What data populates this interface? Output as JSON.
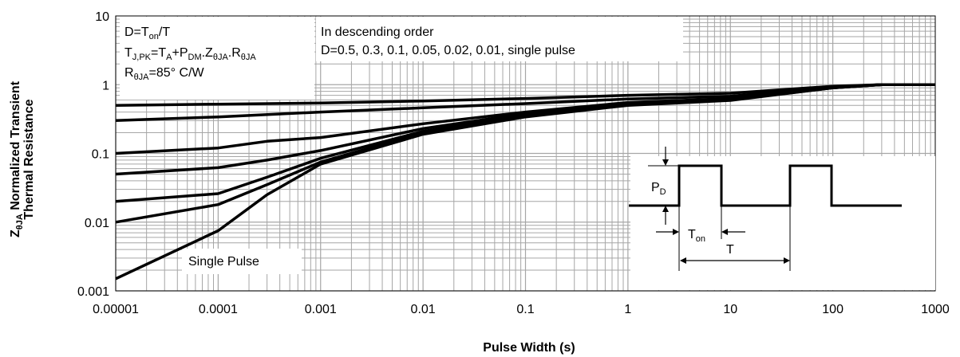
{
  "chart_data": {
    "type": "line",
    "title": "",
    "xlabel": "Pulse Width (s)",
    "ylabel_line1": "Normalized Transient",
    "ylabel_line2": "Thermal Resistance",
    "ylabel_symbol": "Z",
    "ylabel_symbol_sub": "θJA",
    "x_scale": "log",
    "y_scale": "log",
    "xlim": [
      1e-05,
      1000
    ],
    "ylim": [
      0.001,
      10
    ],
    "x_tick_labels": [
      "0.00001",
      "0.0001",
      "0.001",
      "0.01",
      "0.1",
      "1",
      "10",
      "100",
      "1000"
    ],
    "y_tick_labels": [
      "0.001",
      "0.01",
      "0.1",
      "1",
      "10"
    ],
    "grid": true,
    "series": [
      {
        "values": [
          [
            1e-05,
            0.5
          ],
          [
            0.0001,
            0.52
          ],
          [
            0.001,
            0.54
          ],
          [
            0.01,
            0.58
          ],
          [
            0.1,
            0.63
          ],
          [
            1,
            0.7
          ],
          [
            10,
            0.75
          ],
          [
            100,
            0.95
          ],
          [
            300,
            1.0
          ],
          [
            1000,
            1.0
          ]
        ]
      },
      {
        "values": [
          [
            1e-05,
            0.3
          ],
          [
            0.0001,
            0.34
          ],
          [
            0.001,
            0.4
          ],
          [
            0.01,
            0.46
          ],
          [
            0.1,
            0.53
          ],
          [
            1,
            0.62
          ],
          [
            10,
            0.68
          ],
          [
            100,
            0.93
          ],
          [
            300,
            1.0
          ],
          [
            1000,
            1.0
          ]
        ]
      },
      {
        "values": [
          [
            1e-05,
            0.1
          ],
          [
            0.0001,
            0.12
          ],
          [
            0.0003,
            0.15
          ],
          [
            0.001,
            0.17
          ],
          [
            0.01,
            0.27
          ],
          [
            0.1,
            0.4
          ],
          [
            1,
            0.55
          ],
          [
            10,
            0.63
          ],
          [
            100,
            0.92
          ],
          [
            300,
            1.0
          ],
          [
            1000,
            1.0
          ]
        ]
      },
      {
        "values": [
          [
            1e-05,
            0.05
          ],
          [
            0.0001,
            0.062
          ],
          [
            0.0003,
            0.08
          ],
          [
            0.001,
            0.11
          ],
          [
            0.01,
            0.23
          ],
          [
            0.1,
            0.38
          ],
          [
            1,
            0.53
          ],
          [
            10,
            0.62
          ],
          [
            100,
            0.91
          ],
          [
            300,
            1.0
          ],
          [
            1000,
            1.0
          ]
        ]
      },
      {
        "values": [
          [
            1e-05,
            0.02
          ],
          [
            0.0001,
            0.026
          ],
          [
            0.0003,
            0.045
          ],
          [
            0.001,
            0.085
          ],
          [
            0.01,
            0.21
          ],
          [
            0.1,
            0.36
          ],
          [
            1,
            0.52
          ],
          [
            10,
            0.61
          ],
          [
            100,
            0.9
          ],
          [
            300,
            1.0
          ],
          [
            1000,
            1.0
          ]
        ]
      },
      {
        "values": [
          [
            1e-05,
            0.01
          ],
          [
            0.0001,
            0.018
          ],
          [
            0.0003,
            0.035
          ],
          [
            0.001,
            0.075
          ],
          [
            0.01,
            0.2
          ],
          [
            0.1,
            0.35
          ],
          [
            1,
            0.51
          ],
          [
            10,
            0.6
          ],
          [
            100,
            0.9
          ],
          [
            300,
            1.0
          ],
          [
            1000,
            1.0
          ]
        ]
      },
      {
        "name": "Single Pulse",
        "values": [
          [
            1e-05,
            0.0015
          ],
          [
            0.0001,
            0.0075
          ],
          [
            0.0003,
            0.025
          ],
          [
            0.001,
            0.07
          ],
          [
            0.01,
            0.19
          ],
          [
            0.1,
            0.34
          ],
          [
            1,
            0.5
          ],
          [
            10,
            0.59
          ],
          [
            100,
            0.9
          ],
          [
            300,
            1.0
          ],
          [
            1000,
            1.0
          ]
        ]
      }
    ],
    "annotations": {
      "formula_1": "D=T",
      "formula_1_sub": "on",
      "formula_1_tail": "/T",
      "formula_2_a": "T",
      "formula_2_a_sub": "J,PK",
      "formula_2_b": "=T",
      "formula_2_b_sub": "A",
      "formula_2_c": "+P",
      "formula_2_c_sub": "DM",
      "formula_2_d": ".Z",
      "formula_2_d_sub": "θJA",
      "formula_2_e": ".R",
      "formula_2_e_sub": "θJA",
      "formula_3_a": "R",
      "formula_3_a_sub": "θJA",
      "formula_3_b": "=85°  C/W",
      "order_line_1": "In descending order",
      "order_line_2": "D=0.5, 0.3, 0.1, 0.05, 0.02, 0.01, single pulse",
      "single_pulse_label": "Single Pulse",
      "pulse_pd": "P",
      "pulse_pd_sub": "D",
      "pulse_ton": "T",
      "pulse_ton_sub": "on",
      "pulse_t": "T"
    },
    "colors": {
      "line": "#000000",
      "grid": "#a6a6a6",
      "background": "#ffffff"
    }
  }
}
